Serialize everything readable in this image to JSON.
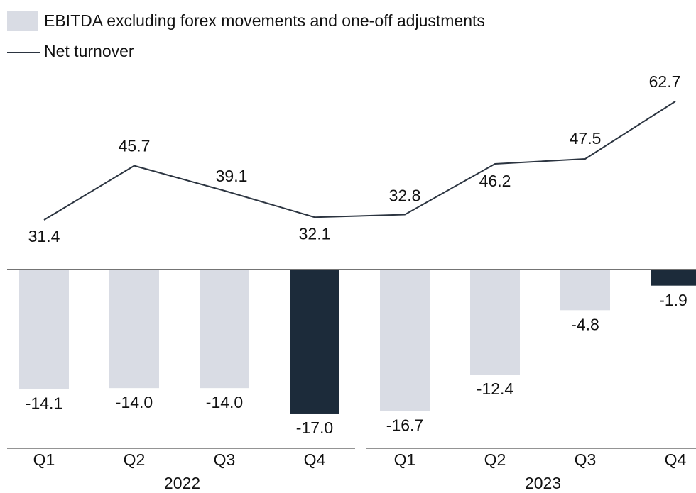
{
  "chart_data": {
    "type": "bar-line",
    "categories": [
      "Q1",
      "Q2",
      "Q3",
      "Q4",
      "Q1",
      "Q2",
      "Q3",
      "Q4"
    ],
    "groups": [
      "2022",
      "2023"
    ],
    "series": [
      {
        "name": "EBITDA excluding forex movements and one-off adjustments",
        "type": "bar",
        "color": "#d9dce4",
        "colors": [
          "#d9dce4",
          "#d9dce4",
          "#d9dce4",
          "#1c2b3a",
          "#d9dce4",
          "#d9dce4",
          "#d9dce4",
          "#1c2b3a"
        ],
        "values": [
          -14.1,
          -14.0,
          -14.0,
          -17.0,
          -16.7,
          -12.4,
          -4.8,
          -1.9
        ],
        "value_labels": [
          "-14.1",
          "-14.0",
          "-14.0",
          "-17.0",
          "-16.7",
          "-12.4",
          "-4.8",
          "-1.9"
        ]
      },
      {
        "name": "Net turnover",
        "type": "line",
        "color": "#2b3440",
        "values": [
          31.4,
          45.7,
          39.1,
          32.1,
          32.8,
          46.2,
          47.5,
          62.7
        ]
      }
    ]
  }
}
